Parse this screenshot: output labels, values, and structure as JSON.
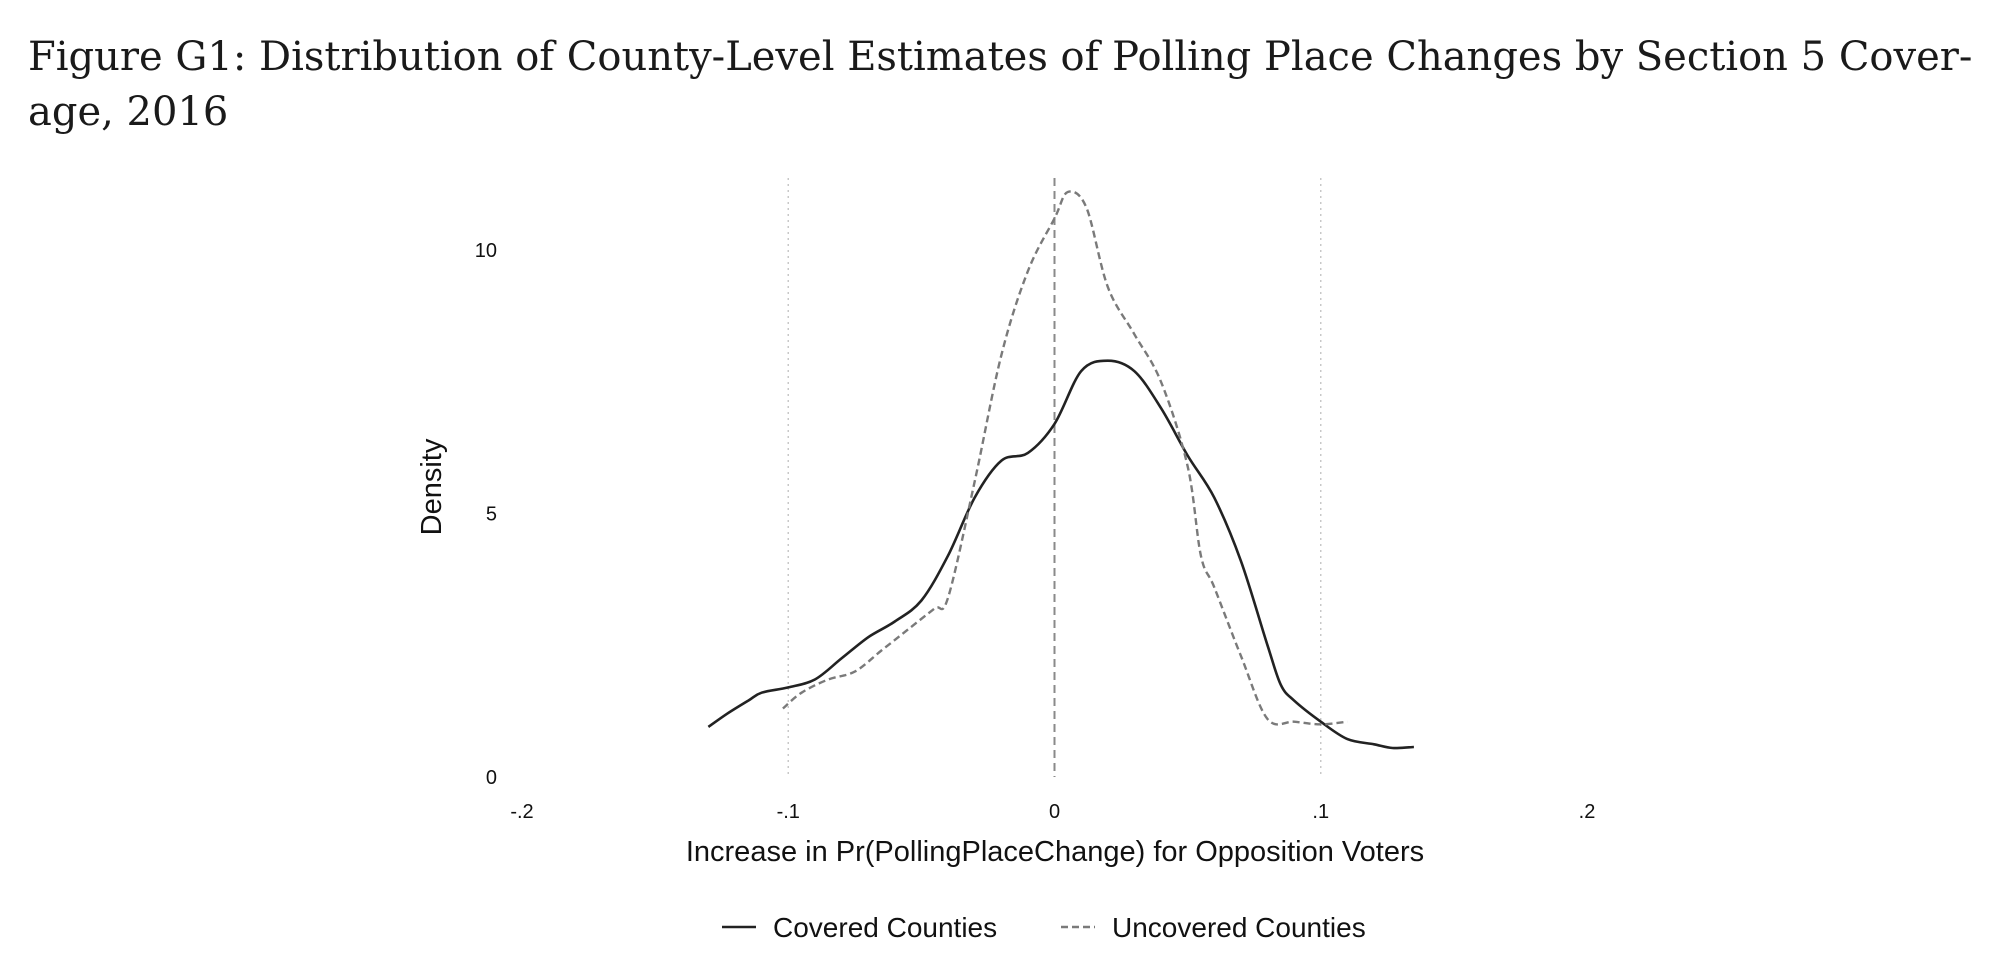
{
  "figure": {
    "title": "Figure G1: Distribution of County-Level Estimates of Polling Place Changes by Section 5 Cover-age, 2016"
  },
  "chart_data": {
    "type": "line",
    "title": "Figure G1: Distribution of County-Level Estimates of Polling Place Changes by Section 5 Coverage, 2016",
    "xlabel": "Increase in Pr(PollingPlaceChange) for Opposition Voters",
    "ylabel": "Density",
    "xlim": [
      -0.2,
      0.2
    ],
    "ylim": [
      0,
      11
    ],
    "x_ticks": [
      -0.2,
      -0.1,
      0,
      0.1,
      0.2
    ],
    "x_tick_labels": [
      "-.2",
      "-.1",
      "0",
      ".1",
      ".2"
    ],
    "y_ticks": [
      0,
      5,
      10
    ],
    "y_tick_labels": [
      "0",
      "5",
      "10"
    ],
    "reference_lines": {
      "dotted_x": [
        -0.1,
        0.1
      ],
      "dashed_x": [
        0
      ]
    },
    "grid": false,
    "legend_position": "bottom",
    "colors": {
      "covered": "#222222",
      "uncovered": "#7a7a7a",
      "dotted_ref": "#c8c8c8",
      "dashed_ref": "#8a8a8a"
    },
    "series": [
      {
        "name": "Covered Counties",
        "style": "solid",
        "x": [
          -0.13,
          -0.123,
          -0.115,
          -0.11,
          -0.1,
          -0.09,
          -0.08,
          -0.07,
          -0.06,
          -0.05,
          -0.04,
          -0.03,
          -0.02,
          -0.01,
          0.0,
          0.01,
          0.02,
          0.03,
          0.04,
          0.05,
          0.06,
          0.07,
          0.08,
          0.085,
          0.09,
          0.1,
          0.11,
          0.12,
          0.127,
          0.135
        ],
        "y": [
          0.95,
          1.2,
          1.45,
          1.6,
          1.7,
          1.85,
          2.25,
          2.65,
          2.95,
          3.35,
          4.2,
          5.3,
          6.0,
          6.15,
          6.7,
          7.7,
          7.9,
          7.7,
          7.0,
          6.1,
          5.3,
          4.1,
          2.5,
          1.75,
          1.45,
          1.05,
          0.72,
          0.62,
          0.55,
          0.57
        ]
      },
      {
        "name": "Uncovered Counties",
        "style": "dashed",
        "x": [
          -0.102,
          -0.095,
          -0.085,
          -0.075,
          -0.065,
          -0.055,
          -0.045,
          -0.04,
          -0.03,
          -0.02,
          -0.01,
          0.0,
          0.005,
          0.012,
          0.02,
          0.03,
          0.04,
          0.05,
          0.055,
          0.06,
          0.07,
          0.08,
          0.09,
          0.1,
          0.11
        ],
        "y": [
          1.3,
          1.6,
          1.85,
          2.0,
          2.4,
          2.8,
          3.2,
          3.4,
          5.6,
          8.0,
          9.6,
          10.6,
          11.1,
          10.8,
          9.3,
          8.4,
          7.5,
          5.9,
          4.2,
          3.6,
          2.3,
          1.1,
          1.05,
          1.0,
          1.05
        ]
      }
    ]
  }
}
